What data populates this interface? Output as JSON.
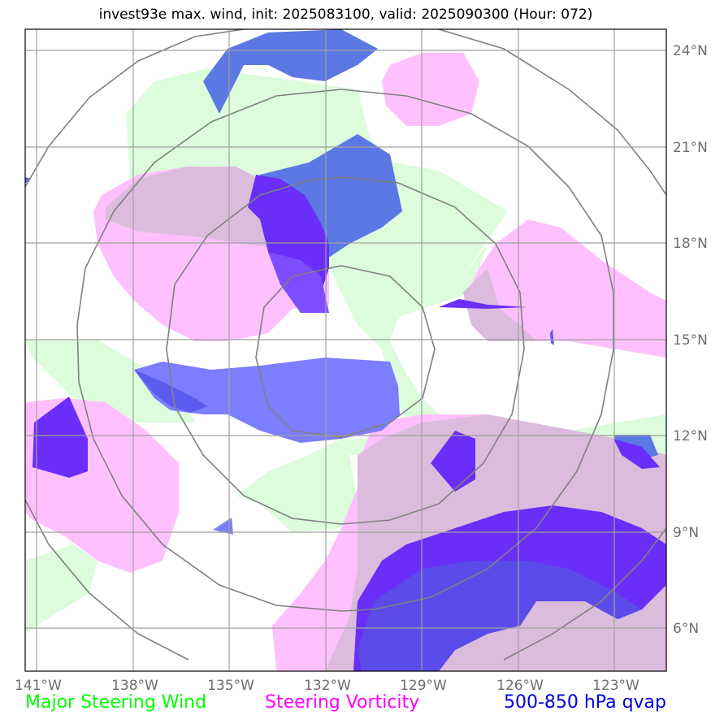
{
  "title": "invest93e max. wind, init: 2025083100, valid: 2025090300 (Hour: 072)",
  "lon_labels": [
    "141°W",
    "138°W",
    "135°W",
    "132°W",
    "129°W",
    "126°W",
    "123°W"
  ],
  "lat_labels": [
    "24°N",
    "21°N",
    "18°N",
    "15°N",
    "12°N",
    "9°N",
    "6°N"
  ],
  "legend": [
    {
      "label": "Major Steering Wind",
      "color": "#00ff00"
    },
    {
      "label": "Steering Vorticity",
      "color": "#ff00ff"
    },
    {
      "label": "500-850 hPa qvap",
      "color": "#0000dd"
    }
  ],
  "colors": {
    "wind_fill": "#dcfcdc",
    "vorticity_fill": "#ffc0ff",
    "qvap_fill": "#5b5bf0",
    "qvap_light": "#7d7dff",
    "qvap_dark": "#6a2ef8",
    "gridline": "#a0a0a0",
    "range_ring": "#808080"
  }
}
